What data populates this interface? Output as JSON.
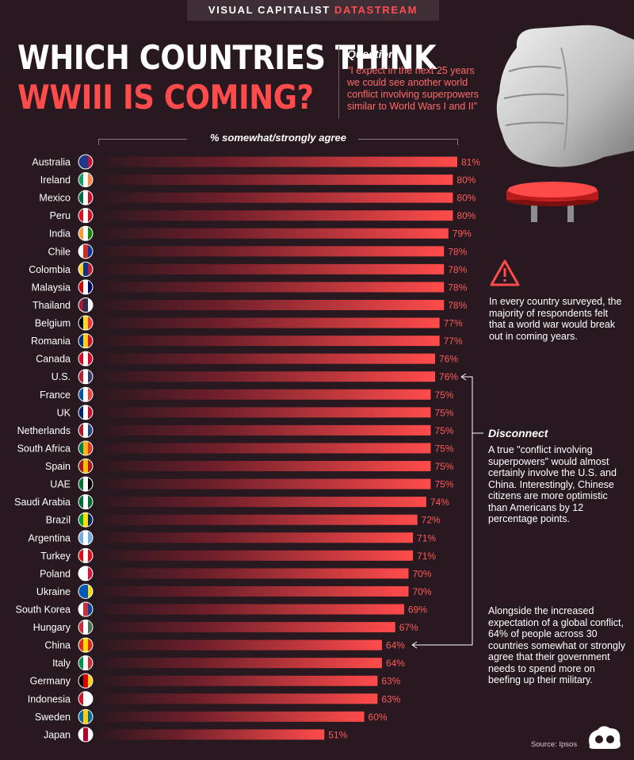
{
  "banner": {
    "brand": "VISUAL CAPITALIST",
    "product": "DATASTREAM"
  },
  "title": {
    "line1": "WHICH COUNTRIES THINK",
    "line2": "WWIII IS COMING?"
  },
  "question": {
    "label": "Question",
    "text": "\"I expect in the next 25 years we could see another world conflict involving superpowers similar to World Wars I and II\""
  },
  "notes": {
    "warning": "In every country surveyed, the majority of respondents felt that a world war would break out in coming years.",
    "disconnect_title": "Disconnect",
    "disconnect_text": "A true \"conflict involving superpowers\" would almost certainly involve the U.S. and China. Interestingly, Chinese citizens are more optimistic than Americans by 12 percentage points.",
    "spending": "Alongside the increased expectation of a global conflict, 64% of people across 30 countries somewhat or strongly agree that their government needs to spend more on beefing up their military."
  },
  "source": "Source: Ipsos",
  "icons": {
    "warning": "warning-triangle-icon",
    "fist": "fist-over-red-button-icon",
    "logo": "visual-capitalist-logo-icon"
  },
  "colors": {
    "bar": "#ff4b4b",
    "accent": "#ff4d4d",
    "background": "#27191f"
  },
  "chart_data": {
    "type": "bar",
    "orientation": "horizontal",
    "xlabel": "% somewhat/strongly agree",
    "xlim": [
      0,
      81
    ],
    "value_suffix": "%",
    "categories": [
      "Australia",
      "Ireland",
      "Mexico",
      "Peru",
      "India",
      "Chile",
      "Colombia",
      "Malaysia",
      "Thailand",
      "Belgium",
      "Romania",
      "Canada",
      "U.S.",
      "France",
      "UK",
      "Netherlands",
      "South Africa",
      "Spain",
      "UAE",
      "Saudi Arabia",
      "Brazil",
      "Argentina",
      "Turkey",
      "Poland",
      "Ukraine",
      "South Korea",
      "Hungary",
      "China",
      "Italy",
      "Germany",
      "Indonesia",
      "Sweden",
      "Japan"
    ],
    "values": [
      81,
      80,
      80,
      80,
      79,
      78,
      78,
      78,
      78,
      77,
      77,
      76,
      76,
      75,
      75,
      75,
      75,
      75,
      75,
      74,
      72,
      71,
      71,
      70,
      70,
      69,
      67,
      64,
      64,
      63,
      63,
      60,
      51
    ],
    "flags": [
      "australia-flag-icon",
      "ireland-flag-icon",
      "mexico-flag-icon",
      "peru-flag-icon",
      "india-flag-icon",
      "chile-flag-icon",
      "colombia-flag-icon",
      "malaysia-flag-icon",
      "thailand-flag-icon",
      "belgium-flag-icon",
      "romania-flag-icon",
      "canada-flag-icon",
      "us-flag-icon",
      "france-flag-icon",
      "uk-flag-icon",
      "netherlands-flag-icon",
      "south-africa-flag-icon",
      "spain-flag-icon",
      "uae-flag-icon",
      "saudi-arabia-flag-icon",
      "brazil-flag-icon",
      "argentina-flag-icon",
      "turkey-flag-icon",
      "poland-flag-icon",
      "ukraine-flag-icon",
      "south-korea-flag-icon",
      "hungary-flag-icon",
      "china-flag-icon",
      "italy-flag-icon",
      "germany-flag-icon",
      "indonesia-flag-icon",
      "sweden-flag-icon",
      "japan-flag-icon"
    ]
  }
}
